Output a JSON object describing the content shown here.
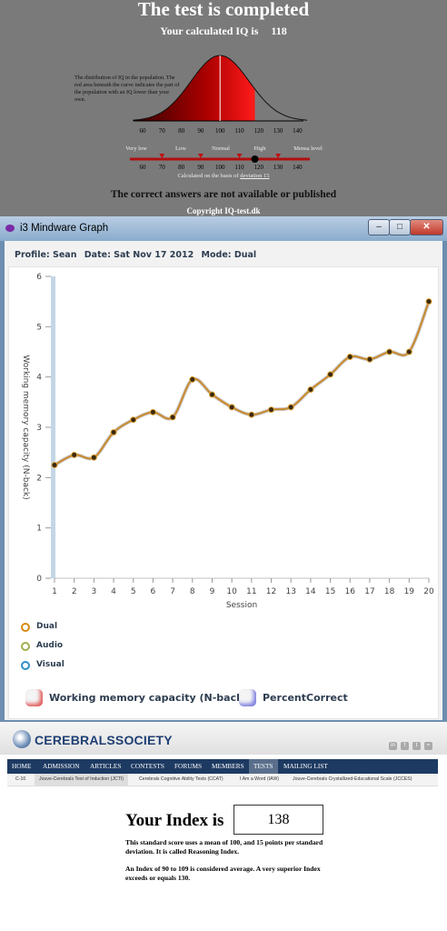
{
  "iq_panel": {
    "title": "The test is completed",
    "score_label": "Your calculated IQ is",
    "score_value": "118",
    "description": "The distribution of IQ in the population. The red area beneath the curve indicates the part of the population with an IQ lower than your own.",
    "axis_ticks": [
      "60",
      "70",
      "80",
      "90",
      "100",
      "110",
      "120",
      "130",
      "140"
    ],
    "scale_labels": [
      "Very low",
      "Low",
      "Normal",
      "High",
      "Mensa level"
    ],
    "note_prefix": "Calculated on the basis of",
    "note_link": "deviation 15",
    "correct_answers": "The correct answers are not available or published",
    "copyright": "Copyright IQ-test.dk",
    "iq_score": 118
  },
  "mindware": {
    "window_title": "i3 Mindware Graph",
    "profile": "Profile: Sean",
    "date": "Date: Sat Nov 17 2012",
    "mode": "Mode: Dual",
    "legend_modes": [
      {
        "label": "Dual",
        "color": "#d98a10"
      },
      {
        "label": "Audio",
        "color": "#9db04a"
      },
      {
        "label": "Visual",
        "color": "#2d8fc8"
      }
    ],
    "legend_metrics": [
      {
        "label": "Working memory capacity (N-back)",
        "color": "#e06060"
      },
      {
        "label": "PercentCorrect",
        "color": "#8080e0"
      }
    ],
    "chart_data": {
      "type": "line",
      "xlabel": "Session",
      "ylabel": "Working memory capacity (N-back)",
      "x": [
        1,
        2,
        3,
        4,
        5,
        6,
        7,
        8,
        9,
        10,
        11,
        12,
        13,
        14,
        15,
        16,
        17,
        18,
        19,
        20
      ],
      "series": [
        {
          "name": "Working memory capacity (N-back)",
          "color": "#c98a2e",
          "values": [
            2.25,
            2.45,
            2.4,
            2.9,
            3.15,
            3.3,
            3.2,
            3.95,
            3.65,
            3.4,
            3.25,
            3.35,
            3.4,
            3.75,
            4.05,
            4.4,
            4.35,
            4.5,
            4.5,
            5.5
          ]
        }
      ],
      "ylim": [
        0,
        6
      ],
      "xlim": [
        1,
        20
      ],
      "yticks": [
        0,
        1,
        2,
        3,
        4,
        5,
        6
      ],
      "grid": false
    }
  },
  "cerebrals": {
    "logo_text": "CEREBRALSSOCIETY",
    "social": [
      "in",
      "f",
      "t",
      "rss"
    ],
    "nav": [
      "HOME",
      "ADMISSION",
      "ARTICLES",
      "CONTESTS",
      "FORUMS",
      "MEMBERS",
      "TESTS",
      "MAILING LIST"
    ],
    "nav_active": "TESTS",
    "subnav": [
      "C-10",
      "Jouve-Cerebrals Test of Induction (JCTI)",
      "Cerebrals Cognitive Ability Tests (CCAT)",
      "I Am a Word (IAW)",
      "Jouve-Cerebrals Crystallized-Educational Scale (JCCES)"
    ],
    "index_label": "Your Index is",
    "index_value": "138",
    "para1": "This standard score uses a mean of 100, and 15 points per standard deviation. It is called Reasoning Index.",
    "para2": "An Index of 90 to 109 is considered average. A very superior Index exceeds or equals 130."
  }
}
